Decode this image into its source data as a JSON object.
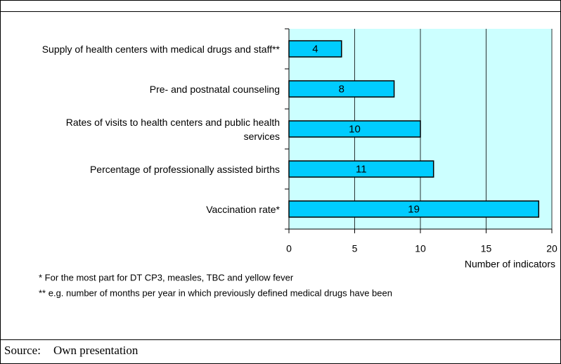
{
  "chart_data": {
    "type": "bar",
    "orientation": "horizontal",
    "categories": [
      "Supply of health centers with medical drugs and staff**",
      "Pre- and postnatal counseling",
      "Rates of visits to health centers and public health services",
      "Percentage of professionally assisted births",
      "Vaccination rate*"
    ],
    "values": [
      4,
      8,
      10,
      11,
      19
    ],
    "color": "#00ccff",
    "plot_background": "#ccffff",
    "xlim": [
      0,
      20
    ],
    "xticks": [
      0,
      5,
      10,
      15,
      20
    ],
    "grid": true,
    "x_label": "Number of indicators",
    "footnotes": [
      "* For the most part for DT CP3, measles, TBC and yellow fever",
      "** e.g. number of months per year in which previously defined medical drugs have been"
    ],
    "source_label": "Source:",
    "source": "Own presentation"
  }
}
